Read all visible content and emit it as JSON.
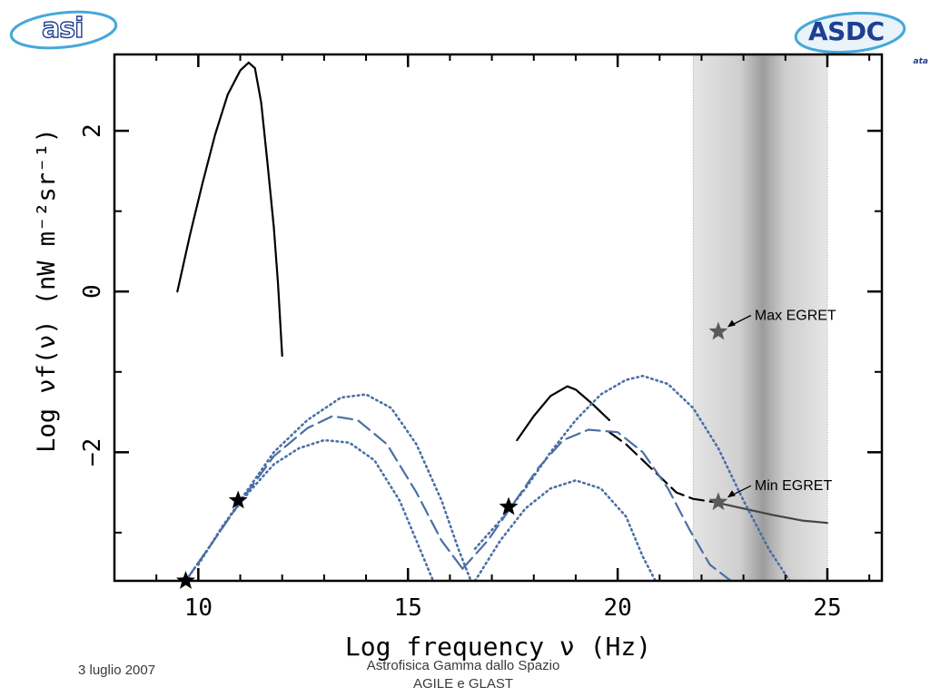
{
  "logos": {
    "left": "asi",
    "right": "ASDC",
    "right_sub": "ata"
  },
  "chart_data": {
    "type": "line",
    "xlabel": "Log frequency ν (Hz)",
    "ylabel": "Log νf(ν) (nW m⁻²sr⁻¹)",
    "xlim": [
      8,
      26.3
    ],
    "ylim": [
      -3.6,
      2.95
    ],
    "x_ticks": [
      10,
      15,
      20,
      25
    ],
    "y_ticks": [
      2,
      0,
      -2
    ],
    "x_tick_labels": [
      "10",
      "15",
      "20",
      "25"
    ],
    "y_tick_labels": [
      "2",
      "0",
      "−2"
    ],
    "shaded_band": {
      "x_start": 21.8,
      "x_end": 25,
      "color": "#d4d4d4"
    },
    "series": [
      {
        "style": "solid",
        "color": "#000000",
        "x": [
          9.5,
          9.8,
          10.1,
          10.4,
          10.7,
          11.0,
          11.2,
          11.35,
          11.5,
          11.65,
          11.8,
          11.9,
          12.0
        ],
        "y": [
          0.0,
          0.7,
          1.35,
          1.95,
          2.45,
          2.75,
          2.85,
          2.78,
          2.35,
          1.6,
          0.8,
          0.1,
          -0.8
        ]
      },
      {
        "style": "solid",
        "color": "#000000",
        "x": [
          17.6,
          18.0,
          18.4,
          18.8,
          19.0,
          19.4,
          19.8
        ],
        "y": [
          -1.85,
          -1.55,
          -1.3,
          -1.18,
          -1.22,
          -1.4,
          -1.6
        ]
      },
      {
        "style": "longdash",
        "color": "#000000",
        "x": [
          19.8,
          20.2,
          20.6,
          21.0,
          21.4,
          21.8,
          22.3
        ],
        "y": [
          -1.75,
          -1.9,
          -2.1,
          -2.3,
          -2.5,
          -2.58,
          -2.62
        ]
      },
      {
        "style": "solid",
        "color": "#444444",
        "x": [
          22.3,
          23.0,
          23.7,
          24.4,
          25.0
        ],
        "y": [
          -2.62,
          -2.7,
          -2.78,
          -2.85,
          -2.88
        ]
      },
      {
        "style": "dotted",
        "color": "#4a6fa5",
        "x": [
          9.7,
          10.3,
          11.0,
          11.8,
          12.6,
          13.4,
          14.0,
          14.6,
          15.2,
          15.8,
          16.2,
          16.5
        ],
        "y": [
          -3.6,
          -3.15,
          -2.6,
          -2.0,
          -1.6,
          -1.32,
          -1.28,
          -1.45,
          -1.9,
          -2.6,
          -3.2,
          -3.6
        ]
      },
      {
        "style": "longdash",
        "color": "#4a6fa5",
        "x": [
          9.7,
          10.3,
          11.0,
          11.8,
          12.6,
          13.2,
          13.8,
          14.5,
          15.2,
          15.8,
          16.3
        ],
        "y": [
          -3.6,
          -3.15,
          -2.62,
          -2.05,
          -1.7,
          -1.55,
          -1.6,
          -1.9,
          -2.5,
          -3.1,
          -3.45
        ]
      },
      {
        "style": "dotted",
        "color": "#4a6fa5",
        "x": [
          10.0,
          10.6,
          11.2,
          11.8,
          12.4,
          13.0,
          13.6,
          14.2,
          14.8,
          15.2,
          15.6
        ],
        "y": [
          -3.4,
          -2.9,
          -2.5,
          -2.15,
          -1.95,
          -1.85,
          -1.88,
          -2.1,
          -2.6,
          -3.1,
          -3.6
        ]
      },
      {
        "style": "longdash",
        "color": "#4a6fa5",
        "x": [
          16.3,
          16.9,
          17.5,
          18.1,
          18.7,
          19.3,
          20.0,
          20.6,
          21.2,
          21.7,
          22.2,
          22.7
        ],
        "y": [
          -3.45,
          -3.1,
          -2.65,
          -2.2,
          -1.85,
          -1.72,
          -1.75,
          -2.0,
          -2.45,
          -2.95,
          -3.4,
          -3.6
        ]
      },
      {
        "style": "dotted",
        "color": "#4a6fa5",
        "x": [
          16.6,
          17.2,
          17.8,
          18.4,
          19.0,
          19.6,
          20.2,
          20.6,
          21.2,
          21.8,
          22.4,
          23.0,
          23.6,
          24.1
        ],
        "y": [
          -3.2,
          -2.85,
          -2.45,
          -2.0,
          -1.6,
          -1.28,
          -1.1,
          -1.05,
          -1.15,
          -1.45,
          -1.95,
          -2.6,
          -3.2,
          -3.6
        ]
      },
      {
        "style": "dotted",
        "color": "#4a6fa5",
        "x": [
          16.6,
          17.2,
          17.8,
          18.4,
          19.0,
          19.6,
          20.2,
          20.6,
          20.9
        ],
        "y": [
          -3.6,
          -3.1,
          -2.7,
          -2.45,
          -2.35,
          -2.45,
          -2.8,
          -3.3,
          -3.6
        ]
      }
    ],
    "stars": [
      {
        "x": 9.7,
        "y": -3.6,
        "color": "#000000"
      },
      {
        "x": 10.95,
        "y": -2.6,
        "color": "#000000"
      },
      {
        "x": 17.4,
        "y": -2.68,
        "color": "#000000"
      },
      {
        "x": 22.4,
        "y": -0.5,
        "color": "#5a5a5a"
      },
      {
        "x": 22.4,
        "y": -2.62,
        "color": "#5a5a5a"
      }
    ],
    "annotations": [
      {
        "text": "Max EGRET",
        "target_x": 22.4,
        "target_y": -0.5
      },
      {
        "text": "Min EGRET",
        "target_x": 22.4,
        "target_y": -2.62
      }
    ]
  },
  "footer": {
    "date": "3 luglio 2007",
    "line1": "Astrofisica Gamma dallo Spazio",
    "line2": "AGILE e GLAST"
  }
}
